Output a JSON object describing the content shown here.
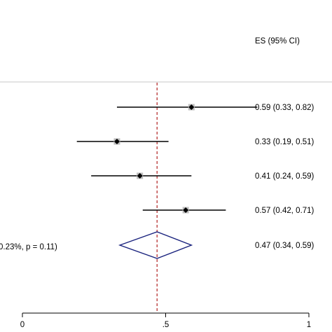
{
  "chart_data": {
    "type": "forest",
    "header_es": "ES (95% CI)",
    "x_ticks": [
      0,
      0.5,
      1
    ],
    "x_tick_labels": [
      "0",
      ".5",
      "1"
    ],
    "xlim": [
      0,
      1
    ],
    "overall_line": 0.47,
    "studies": [
      {
        "es": 0.59,
        "lo": 0.33,
        "hi": 0.82,
        "label": "0.59 (0.33, 0.82)"
      },
      {
        "es": 0.33,
        "lo": 0.19,
        "hi": 0.51,
        "label": "0.33 (0.19, 0.51)"
      },
      {
        "es": 0.41,
        "lo": 0.24,
        "hi": 0.59,
        "label": "0.41 (0.24, 0.59)"
      },
      {
        "es": 0.57,
        "lo": 0.42,
        "hi": 0.71,
        "label": "0.57 (0.42, 0.71)"
      }
    ],
    "overall": {
      "es": 0.47,
      "lo": 0.34,
      "hi": 0.59,
      "label": "0.47 (0.34, 0.59)"
    },
    "overall_left_text": "0.23%, p = 0.11)"
  },
  "colors": {
    "diamond": "#1a237e",
    "reference_line": "#b22222",
    "marker": "#000000",
    "box": "#bdbdbd",
    "divider": "#c8c8c8"
  }
}
